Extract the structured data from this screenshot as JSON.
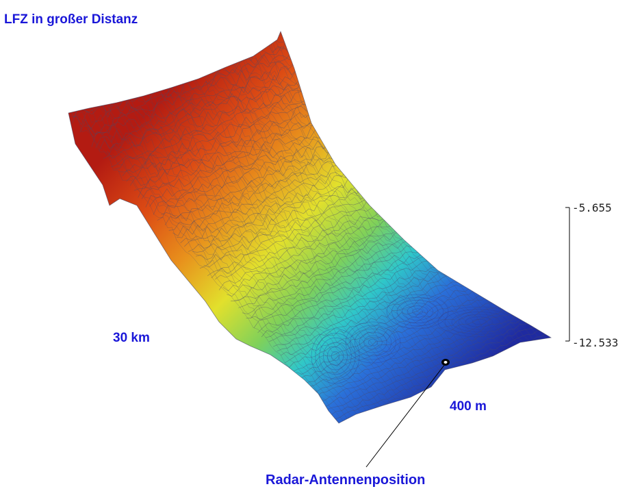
{
  "title": "LFZ in großer Distanz",
  "distance_long_label": "30 km",
  "distance_short_label": "400 m",
  "antenna_label": "Radar-Antennenposition",
  "scale": {
    "max_label": "-5.655",
    "min_label": "-12.533",
    "max_value": -5.655,
    "min_value": -12.533
  },
  "colors": {
    "label_blue": "#1a17d8",
    "colormap": [
      "#1a1a8c",
      "#2a5fd6",
      "#2fc7c9",
      "#e8e82a",
      "#e8901c",
      "#b31b12"
    ]
  }
}
